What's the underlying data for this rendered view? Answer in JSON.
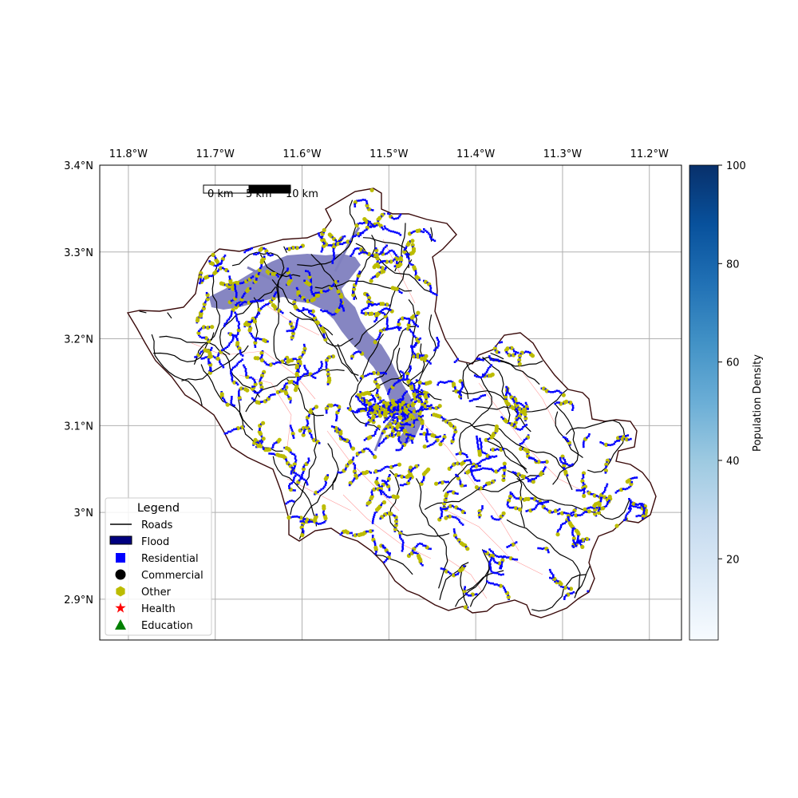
{
  "map": {
    "lon_ticks": [
      "11.8°W",
      "11.7°W",
      "11.6°W",
      "11.5°W",
      "11.4°W",
      "11.3°W",
      "11.2°W"
    ],
    "lat_ticks": [
      "3.4°N",
      "3.3°N",
      "3.2°N",
      "3.1°N",
      "3°N",
      "2.9°N"
    ],
    "lon_range": [
      -11.833,
      -11.163
    ],
    "lat_range": [
      2.853,
      3.4
    ],
    "grid": true,
    "scale_bar": {
      "labels": [
        "0 km",
        "5 km",
        "10 km"
      ]
    },
    "colors": {
      "roads": "#000000",
      "boundary": "#3a0a0a",
      "flood": "#7f7fbf",
      "residential": "#0000ff",
      "other": "#bcbc00",
      "admin_lines": "#ff9a9a"
    }
  },
  "legend": {
    "title": "Legend",
    "items": [
      {
        "label": "Roads",
        "icon": "line-icon",
        "color": "#000000"
      },
      {
        "label": "Flood",
        "icon": "flood-patch-icon",
        "color": "#00007f"
      },
      {
        "label": "Residential",
        "icon": "square-icon",
        "color": "#0000ff"
      },
      {
        "label": "Commercial",
        "icon": "circle-icon",
        "color": "#000000"
      },
      {
        "label": "Other",
        "icon": "hexagon-icon",
        "color": "#bcbc00"
      },
      {
        "label": "Health",
        "icon": "star-icon",
        "color": "#ff0000"
      },
      {
        "label": "Education",
        "icon": "triangle-icon",
        "color": "#008000"
      }
    ]
  },
  "colorbar": {
    "label": "Population Density",
    "ticks": [
      "20",
      "40",
      "60",
      "80",
      "100"
    ],
    "tick_values": [
      20,
      40,
      60,
      80,
      100
    ],
    "range": [
      3.5,
      100
    ],
    "colormap": "Blues"
  }
}
